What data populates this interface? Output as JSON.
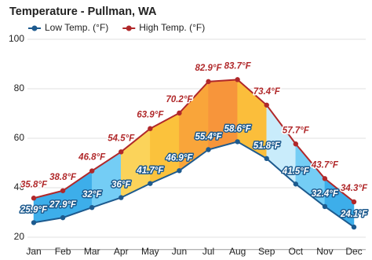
{
  "chart_data": {
    "type": "line",
    "title": "Temperature - Pullman, WA",
    "categories": [
      "Jan",
      "Feb",
      "Mar",
      "Apr",
      "May",
      "Jun",
      "Jul",
      "Aug",
      "Sep",
      "Oct",
      "Nov",
      "Dec"
    ],
    "series": [
      {
        "name": "Low Temp. (°F)",
        "color": "#1d5a8e",
        "values": [
          25.9,
          27.9,
          32,
          36,
          41.7,
          46.9,
          55.4,
          58.6,
          51.8,
          41.5,
          32.4,
          24.1
        ],
        "value_labels": [
          "25.9°F",
          "27.9°F",
          "32°F",
          "36°F",
          "41.7°F",
          "46.9°F",
          "55.4°F",
          "58.6°F",
          "51.8°F",
          "41.5°F",
          "32.4°F",
          "24.1°F"
        ]
      },
      {
        "name": "High Temp. (°F)",
        "color": "#b0282a",
        "values": [
          35.8,
          38.8,
          46.8,
          54.5,
          63.9,
          70.2,
          82.9,
          83.7,
          73.4,
          57.7,
          43.7,
          34.3
        ],
        "value_labels": [
          "35.8°F",
          "38.8°F",
          "46.8°F",
          "54.5°F",
          "63.9°F",
          "70.2°F",
          "82.9°F",
          "83.7°F",
          "73.4°F",
          "57.7°F",
          "43.7°F",
          "34.3°F"
        ]
      }
    ],
    "area_colors": [
      "#3daeea",
      "#3daeea",
      "#74cdf5",
      "#fbd35a",
      "#fbc23c",
      "#f9a53a",
      "#f7953b",
      "#fbbe3b",
      "#c9ecfb",
      "#74cdf5",
      "#3daeea"
    ],
    "ylim": [
      15,
      102
    ],
    "yticks": [
      20,
      40,
      60,
      80,
      100
    ],
    "grid": true,
    "legend": "top-left"
  }
}
